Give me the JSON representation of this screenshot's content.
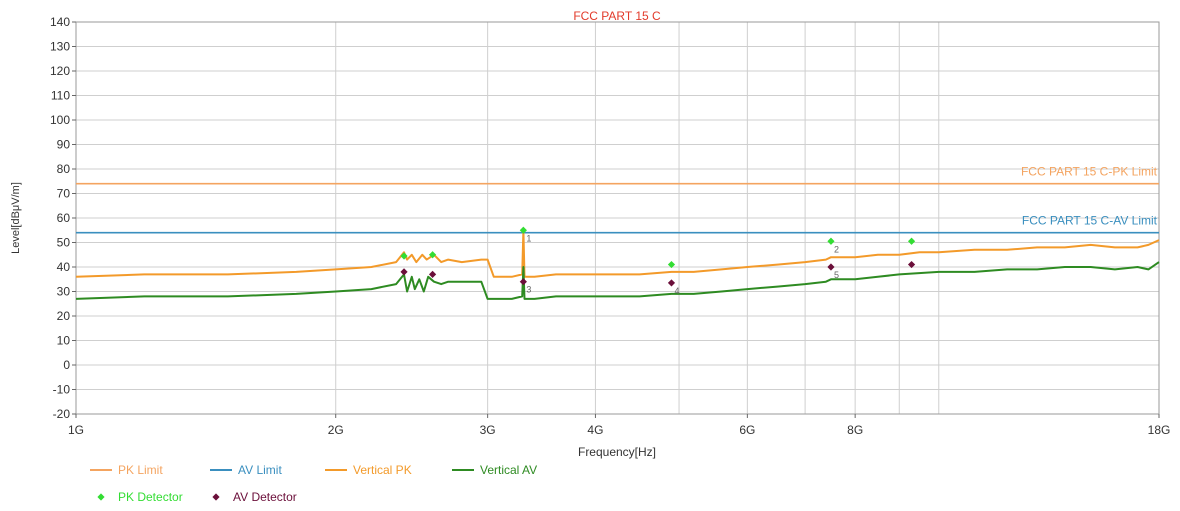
{
  "chart_data": {
    "type": "line",
    "title": "FCC PART 15 C",
    "xlabel": "Frequency[Hz]",
    "ylabel": "Level[dBμV/m]",
    "x_scale": "log",
    "xlim": [
      1000000000,
      18000000000
    ],
    "ylim": [
      -20,
      140
    ],
    "y_ticks": [
      -20,
      -10,
      0,
      10,
      20,
      30,
      40,
      50,
      60,
      70,
      80,
      90,
      100,
      110,
      120,
      130,
      140
    ],
    "x_tick_labels": [
      {
        "x": 1000000000,
        "label": "1G"
      },
      {
        "x": 2000000000,
        "label": "2G"
      },
      {
        "x": 3000000000,
        "label": "3G"
      },
      {
        "x": 4000000000,
        "label": "4G"
      },
      {
        "x": 6000000000,
        "label": "6G"
      },
      {
        "x": 8000000000,
        "label": "8G"
      },
      {
        "x": 18000000000,
        "label": "18G"
      }
    ],
    "x_minor_grid": [
      5000000000,
      7000000000,
      9000000000,
      10000000000
    ],
    "grid": true,
    "legend_position": "bottom-left",
    "colors": {
      "pk_limit": "#f4a460",
      "av_limit": "#3a8fbf",
      "vertical_pk": "#f39a2a",
      "vertical_av": "#2e8b22",
      "pk_detector": "#33dd33",
      "av_detector": "#6b0f3a",
      "title": "#e23a2a",
      "grid": "#cfcfcf"
    },
    "limits": [
      {
        "name": "PK Limit",
        "value": 74,
        "label": "FCC PART 15 C-PK Limit",
        "color": "#f4a460"
      },
      {
        "name": "AV Limit",
        "value": 54,
        "label": "FCC PART 15 C-AV Limit",
        "color": "#3a8fbf"
      }
    ],
    "series": [
      {
        "name": "Vertical PK",
        "color": "#f39a2a",
        "x": [
          1000000000,
          1200000000,
          1500000000,
          1800000000,
          2000000000,
          2200000000,
          2350000000,
          2400000000,
          2420000000,
          2450000000,
          2480000000,
          2520000000,
          2550000000,
          2600000000,
          2650000000,
          2700000000,
          2800000000,
          2950000000,
          3000000000,
          3050000000,
          3200000000,
          3290000000,
          3300000000,
          3310000000,
          3400000000,
          3600000000,
          4000000000,
          4500000000,
          4900000000,
          5200000000,
          5600000000,
          6000000000,
          6500000000,
          7000000000,
          7400000000,
          7500000000,
          7600000000,
          8000000000,
          8500000000,
          9000000000,
          9500000000,
          10000000000,
          11000000000,
          12000000000,
          13000000000,
          14000000000,
          15000000000,
          16000000000,
          17000000000,
          17500000000,
          18000000000
        ],
        "y": [
          36,
          37,
          37,
          38,
          39,
          40,
          42,
          46,
          43,
          45,
          42,
          45,
          43,
          45,
          42,
          43,
          42,
          43,
          43,
          36,
          36,
          37,
          55,
          36,
          36,
          37,
          37,
          37,
          38,
          38,
          39,
          40,
          41,
          42,
          43,
          44,
          44,
          44,
          45,
          45,
          46,
          46,
          47,
          47,
          48,
          48,
          49,
          48,
          48,
          49,
          51
        ]
      },
      {
        "name": "Vertical AV",
        "color": "#2e8b22",
        "x": [
          1000000000,
          1200000000,
          1500000000,
          1800000000,
          2000000000,
          2200000000,
          2350000000,
          2400000000,
          2420000000,
          2450000000,
          2470000000,
          2500000000,
          2530000000,
          2560000000,
          2600000000,
          2650000000,
          2700000000,
          2800000000,
          2950000000,
          3000000000,
          3050000000,
          3200000000,
          3290000000,
          3300000000,
          3310000000,
          3400000000,
          3600000000,
          4000000000,
          4500000000,
          4900000000,
          5200000000,
          5600000000,
          6000000000,
          6500000000,
          7000000000,
          7400000000,
          7500000000,
          8000000000,
          8500000000,
          9000000000,
          10000000000,
          11000000000,
          12000000000,
          13000000000,
          14000000000,
          15000000000,
          16000000000,
          17000000000,
          17500000000,
          18000000000
        ],
        "y": [
          27,
          28,
          28,
          29,
          30,
          31,
          33,
          37,
          30,
          36,
          31,
          35,
          30,
          36,
          34,
          33,
          34,
          34,
          34,
          27,
          27,
          27,
          28,
          40,
          27,
          27,
          28,
          28,
          28,
          29,
          29,
          30,
          31,
          32,
          33,
          34,
          35,
          35,
          36,
          37,
          38,
          38,
          39,
          39,
          40,
          40,
          39,
          40,
          39,
          42
        ]
      }
    ],
    "markers": [
      {
        "name": "PK Detector",
        "color": "#33dd33",
        "points": [
          {
            "x": 2400000000,
            "y": 44.5
          },
          {
            "x": 2590000000,
            "y": 45
          },
          {
            "x": 3300000000,
            "y": 55,
            "label": "1"
          },
          {
            "x": 4900000000,
            "y": 41
          },
          {
            "x": 7500000000,
            "y": 50.5,
            "label": "2"
          },
          {
            "x": 9300000000,
            "y": 50.5
          }
        ]
      },
      {
        "name": "AV Detector",
        "color": "#6b0f3a",
        "points": [
          {
            "x": 2400000000,
            "y": 38
          },
          {
            "x": 2590000000,
            "y": 37
          },
          {
            "x": 3300000000,
            "y": 34,
            "label": "3"
          },
          {
            "x": 4900000000,
            "y": 33.5,
            "label": "4"
          },
          {
            "x": 7500000000,
            "y": 40,
            "label": "5"
          },
          {
            "x": 9300000000,
            "y": 41
          }
        ]
      }
    ],
    "legend": [
      {
        "name": "PK Limit",
        "kind": "line",
        "color": "#f4a460"
      },
      {
        "name": "AV Limit",
        "kind": "line",
        "color": "#3a8fbf"
      },
      {
        "name": "Vertical PK",
        "kind": "line",
        "color": "#f39a2a"
      },
      {
        "name": "Vertical AV",
        "kind": "line",
        "color": "#2e8b22"
      },
      {
        "name": "PK Detector",
        "kind": "marker",
        "color": "#33dd33"
      },
      {
        "name": "AV Detector",
        "kind": "marker",
        "color": "#6b0f3a"
      }
    ]
  }
}
